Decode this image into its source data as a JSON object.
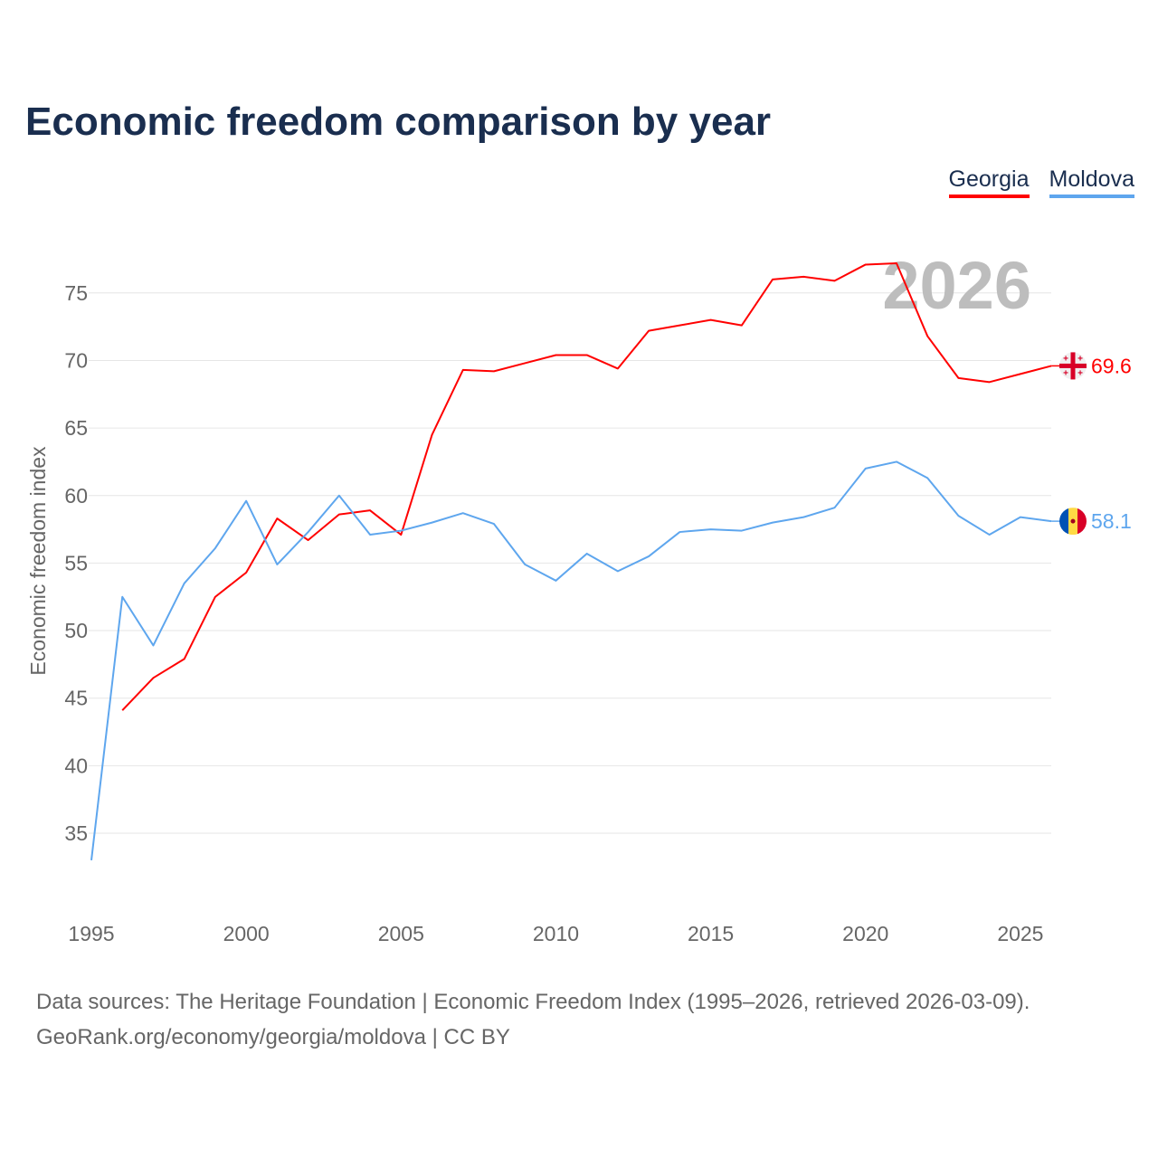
{
  "chart_data": {
    "type": "line",
    "title": "Economic freedom comparison by year",
    "xlabel": "",
    "ylabel": "Economic freedom index",
    "xlim": [
      1995,
      2026
    ],
    "ylim": [
      31,
      79
    ],
    "xticks": [
      1995,
      2000,
      2005,
      2010,
      2015,
      2020,
      2025
    ],
    "yticks": [
      35,
      40,
      45,
      50,
      55,
      60,
      65,
      70,
      75
    ],
    "grid": true,
    "legend_placement": "top-right",
    "year_annotation": "2026",
    "series": [
      {
        "name": "Georgia",
        "color": "#ff0000",
        "flag": "georgia-flag",
        "end_label": "69.6",
        "x": [
          1996,
          1997,
          1998,
          1999,
          2000,
          2001,
          2002,
          2003,
          2004,
          2005,
          2006,
          2007,
          2008,
          2009,
          2010,
          2011,
          2012,
          2013,
          2014,
          2015,
          2016,
          2017,
          2018,
          2019,
          2020,
          2021,
          2022,
          2023,
          2024,
          2025,
          2026
        ],
        "values": [
          44.1,
          46.5,
          47.9,
          52.5,
          54.3,
          58.3,
          56.7,
          58.6,
          58.9,
          57.1,
          64.5,
          69.3,
          69.2,
          69.8,
          70.4,
          70.4,
          69.4,
          72.2,
          72.6,
          73.0,
          72.6,
          76.0,
          76.2,
          75.9,
          77.1,
          77.2,
          71.8,
          68.7,
          68.4,
          69.0,
          69.6
        ]
      },
      {
        "name": "Moldova",
        "color": "#5ea6ee",
        "flag": "moldova-flag",
        "end_label": "58.1",
        "x": [
          1995,
          1996,
          1997,
          1998,
          1999,
          2000,
          2001,
          2002,
          2003,
          2004,
          2005,
          2006,
          2007,
          2008,
          2009,
          2010,
          2011,
          2012,
          2013,
          2014,
          2015,
          2016,
          2017,
          2018,
          2019,
          2020,
          2021,
          2022,
          2023,
          2024,
          2025,
          2026
        ],
        "values": [
          33.0,
          52.5,
          48.9,
          53.5,
          56.1,
          59.6,
          54.9,
          57.3,
          60.0,
          57.1,
          57.4,
          58.0,
          58.7,
          57.9,
          54.9,
          53.7,
          55.7,
          54.4,
          55.5,
          57.3,
          57.5,
          57.4,
          58.0,
          58.4,
          59.1,
          62.0,
          62.5,
          61.3,
          58.5,
          57.1,
          58.4,
          58.1
        ]
      }
    ]
  },
  "footer": {
    "line1": "Data sources: The Heritage Foundation | Economic Freedom Index (1995–2026, retrieved 2026-03-09).",
    "line2": "GeoRank.org/economy/georgia/moldova | CC BY"
  }
}
